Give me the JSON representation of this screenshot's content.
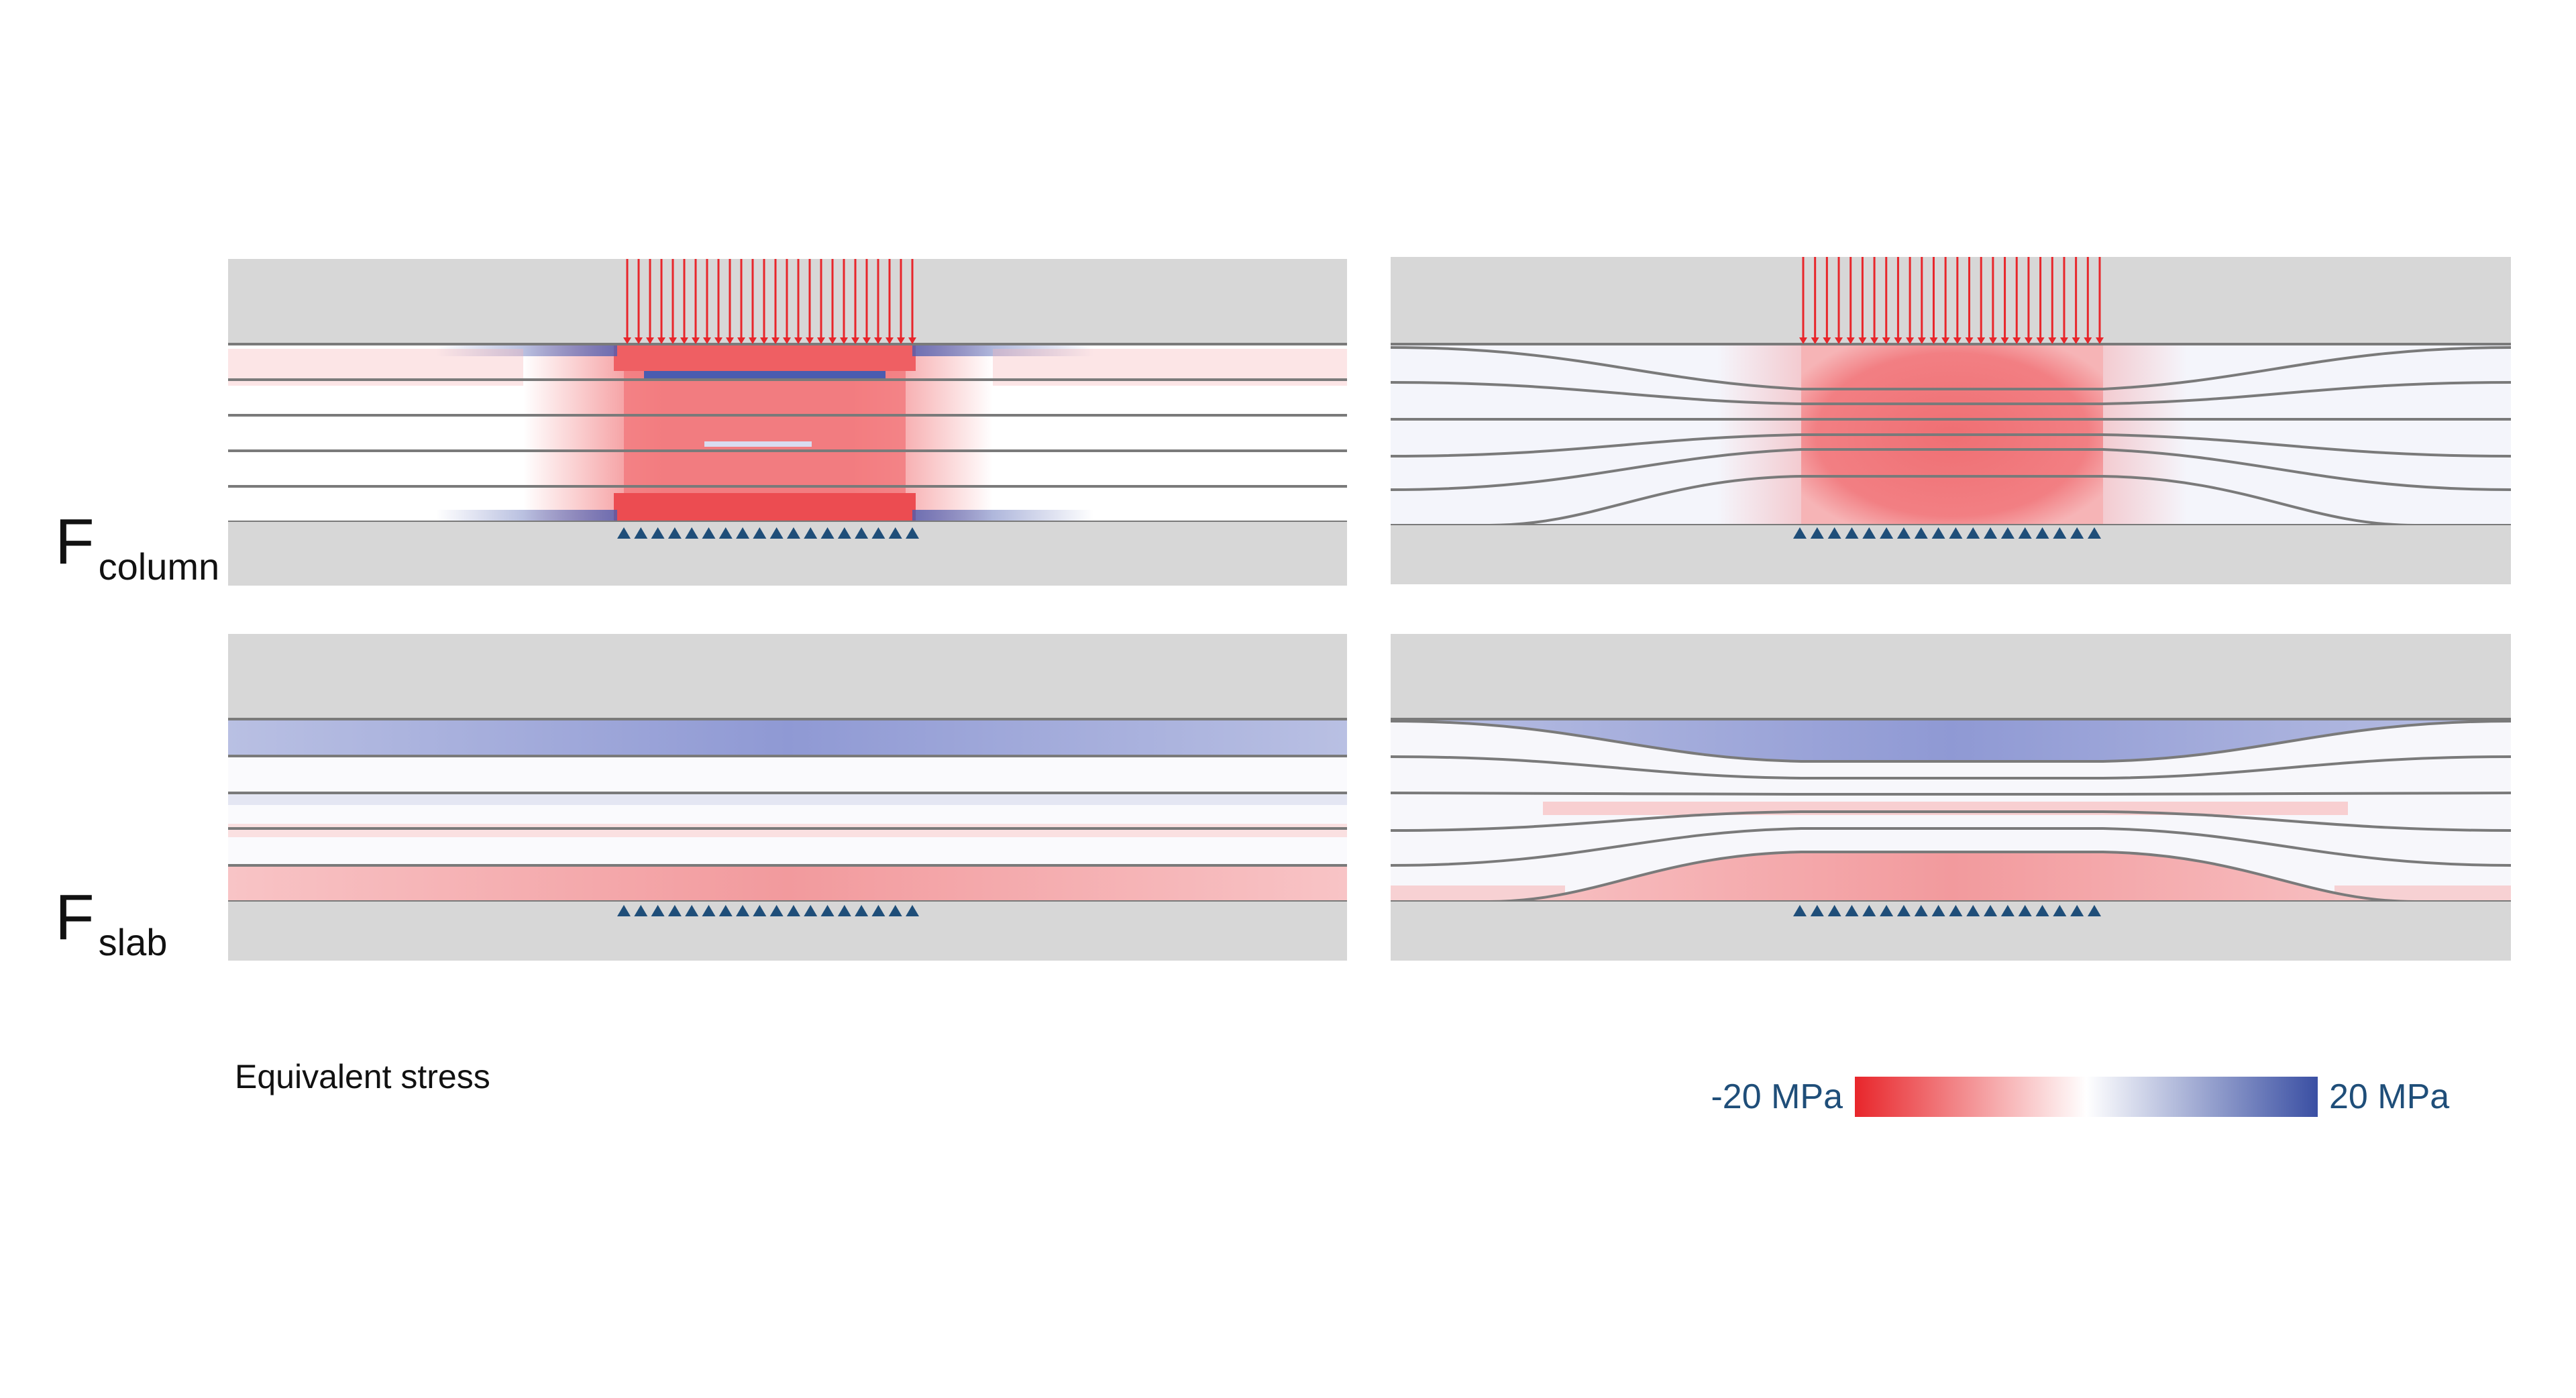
{
  "labels": {
    "row1_main": "F",
    "row1_sub": "column",
    "row2_main": "F",
    "row2_sub": "slab"
  },
  "legend": {
    "title": "Equivalent stress",
    "min_label": "-20 MPa",
    "max_label": "20 MPa",
    "min_color": "#e8262b",
    "max_color": "#3a4fa3"
  },
  "colors": {
    "rigid_block": "#d7d7d7",
    "layer_line": "#7a7a7a",
    "load_arrow": "#e8262b",
    "support": "#1f4e79"
  }
}
